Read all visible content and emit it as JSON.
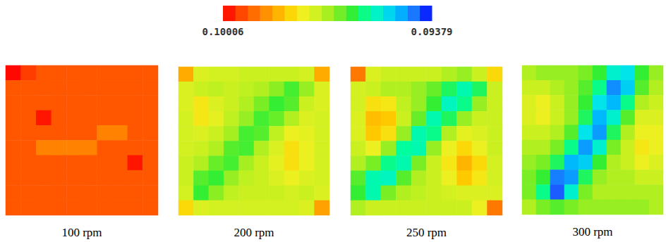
{
  "chart_data": {
    "type": "heatmap",
    "tick_labels": false,
    "colorbar": {
      "range": [
        0.09379,
        0.10006
      ],
      "ticks": [
        0.10006,
        0.09379
      ]
    },
    "panels": [
      {
        "title": "100 rpm",
        "cells": [
          [
            0.1,
            0.0996,
            0.09935,
            0.09935,
            0.09935,
            0.09935,
            0.09935,
            0.09935,
            0.09935,
            0.09935
          ],
          [
            0.09935,
            0.09935,
            0.09935,
            0.09935,
            0.09935,
            0.09935,
            0.09935,
            0.09935,
            0.09935,
            0.09935
          ],
          [
            0.09935,
            0.09935,
            0.09935,
            0.09935,
            0.09935,
            0.09935,
            0.09935,
            0.09935,
            0.09935,
            0.09935
          ],
          [
            0.09935,
            0.09935,
            0.0999,
            0.09935,
            0.09935,
            0.09935,
            0.09935,
            0.09935,
            0.09935,
            0.09935
          ],
          [
            0.09935,
            0.09935,
            0.09935,
            0.09935,
            0.09935,
            0.09935,
            0.0989,
            0.0989,
            0.09935,
            0.09935
          ],
          [
            0.09935,
            0.09935,
            0.0989,
            0.0989,
            0.0989,
            0.0989,
            0.09935,
            0.09935,
            0.09935,
            0.09935
          ],
          [
            0.09935,
            0.09935,
            0.09935,
            0.09935,
            0.09935,
            0.09935,
            0.09935,
            0.09935,
            0.0999,
            0.09935
          ],
          [
            0.09935,
            0.09935,
            0.09935,
            0.09935,
            0.09935,
            0.09935,
            0.09935,
            0.09935,
            0.09935,
            0.09935
          ],
          [
            0.09935,
            0.09935,
            0.09935,
            0.09935,
            0.09935,
            0.09935,
            0.09935,
            0.09935,
            0.09935,
            0.09935
          ],
          [
            0.09935,
            0.09935,
            0.09935,
            0.09935,
            0.09935,
            0.09935,
            0.09935,
            0.09935,
            0.09935,
            0.09935
          ]
        ]
      },
      {
        "title": "200 rpm",
        "cells": [
          [
            0.0985,
            0.0974,
            0.0973,
            0.0973,
            0.0972,
            0.0972,
            0.0972,
            0.0972,
            0.0973,
            0.0985
          ],
          [
            0.0974,
            0.0972,
            0.0971,
            0.0972,
            0.0971,
            0.097,
            0.0967,
            0.0963,
            0.0968,
            0.0974
          ],
          [
            0.0974,
            0.0978,
            0.0974,
            0.0972,
            0.097,
            0.0966,
            0.0962,
            0.0964,
            0.0972,
            0.0974
          ],
          [
            0.0973,
            0.0978,
            0.0975,
            0.0971,
            0.0968,
            0.0963,
            0.0965,
            0.097,
            0.0974,
            0.0973
          ],
          [
            0.0973,
            0.0974,
            0.0972,
            0.0969,
            0.0963,
            0.0964,
            0.0971,
            0.0976,
            0.0975,
            0.0973
          ],
          [
            0.0973,
            0.0972,
            0.097,
            0.0964,
            0.0963,
            0.097,
            0.0974,
            0.0979,
            0.0976,
            0.0973
          ],
          [
            0.0972,
            0.097,
            0.0965,
            0.0963,
            0.0969,
            0.0972,
            0.0975,
            0.0979,
            0.0976,
            0.0973
          ],
          [
            0.0972,
            0.0964,
            0.0962,
            0.0968,
            0.0971,
            0.0972,
            0.0974,
            0.0976,
            0.0974,
            0.0973
          ],
          [
            0.0973,
            0.0962,
            0.0967,
            0.0971,
            0.0972,
            0.0972,
            0.0972,
            0.0973,
            0.0972,
            0.0974
          ],
          [
            0.098,
            0.0974,
            0.0973,
            0.0973,
            0.0973,
            0.0973,
            0.0973,
            0.0973,
            0.0974,
            0.0986
          ]
        ]
      },
      {
        "title": "250 rpm",
        "cells": [
          [
            0.099,
            0.0974,
            0.0972,
            0.0972,
            0.0972,
            0.0972,
            0.097,
            0.0968,
            0.0972,
            0.098
          ],
          [
            0.0973,
            0.0972,
            0.097,
            0.097,
            0.0968,
            0.0965,
            0.096,
            0.0956,
            0.096,
            0.0972
          ],
          [
            0.0973,
            0.0979,
            0.0978,
            0.0971,
            0.0968,
            0.0962,
            0.0955,
            0.0958,
            0.0968,
            0.0972
          ],
          [
            0.0974,
            0.0983,
            0.0982,
            0.0972,
            0.0965,
            0.0956,
            0.096,
            0.0968,
            0.0972,
            0.0972
          ],
          [
            0.0974,
            0.0982,
            0.0979,
            0.0968,
            0.0956,
            0.0958,
            0.097,
            0.0975,
            0.0974,
            0.0972
          ],
          [
            0.0972,
            0.0976,
            0.0968,
            0.0957,
            0.0956,
            0.0968,
            0.0976,
            0.098,
            0.0976,
            0.0972
          ],
          [
            0.097,
            0.0966,
            0.0958,
            0.0956,
            0.0966,
            0.0972,
            0.0978,
            0.0984,
            0.098,
            0.0973
          ],
          [
            0.0964,
            0.0956,
            0.0955,
            0.0964,
            0.097,
            0.0972,
            0.0976,
            0.0982,
            0.0978,
            0.0973
          ],
          [
            0.0962,
            0.0956,
            0.0966,
            0.097,
            0.0971,
            0.0972,
            0.0973,
            0.0974,
            0.0974,
            0.0974
          ],
          [
            0.097,
            0.0972,
            0.0972,
            0.0972,
            0.0972,
            0.0972,
            0.0972,
            0.0972,
            0.0976,
            0.099
          ]
        ]
      },
      {
        "title": "300 rpm",
        "cells": [
          [
            0.097,
            0.0968,
            0.0968,
            0.0968,
            0.0966,
            0.0962,
            0.0954,
            0.0952,
            0.0962,
            0.0968
          ],
          [
            0.0972,
            0.0972,
            0.097,
            0.0968,
            0.0964,
            0.0958,
            0.0945,
            0.095,
            0.0964,
            0.097
          ],
          [
            0.0974,
            0.0976,
            0.0972,
            0.0968,
            0.0962,
            0.0952,
            0.0948,
            0.0958,
            0.097,
            0.0972
          ],
          [
            0.0974,
            0.0976,
            0.0972,
            0.0968,
            0.096,
            0.0948,
            0.0954,
            0.0964,
            0.0974,
            0.0974
          ],
          [
            0.0972,
            0.0972,
            0.097,
            0.0964,
            0.0952,
            0.0946,
            0.096,
            0.097,
            0.0976,
            0.0976
          ],
          [
            0.097,
            0.097,
            0.0966,
            0.0958,
            0.0946,
            0.0954,
            0.0966,
            0.0972,
            0.0978,
            0.0976
          ],
          [
            0.0968,
            0.0966,
            0.096,
            0.0948,
            0.095,
            0.0962,
            0.097,
            0.0972,
            0.0976,
            0.0974
          ],
          [
            0.0966,
            0.0962,
            0.0944,
            0.0946,
            0.096,
            0.0968,
            0.097,
            0.097,
            0.0972,
            0.0972
          ],
          [
            0.0966,
            0.0958,
            0.0942,
            0.0954,
            0.0966,
            0.097,
            0.097,
            0.097,
            0.097,
            0.097
          ],
          [
            0.097,
            0.0966,
            0.0964,
            0.0966,
            0.0968,
            0.0968,
            0.0968,
            0.0968,
            0.0968,
            0.097
          ]
        ]
      }
    ]
  }
}
